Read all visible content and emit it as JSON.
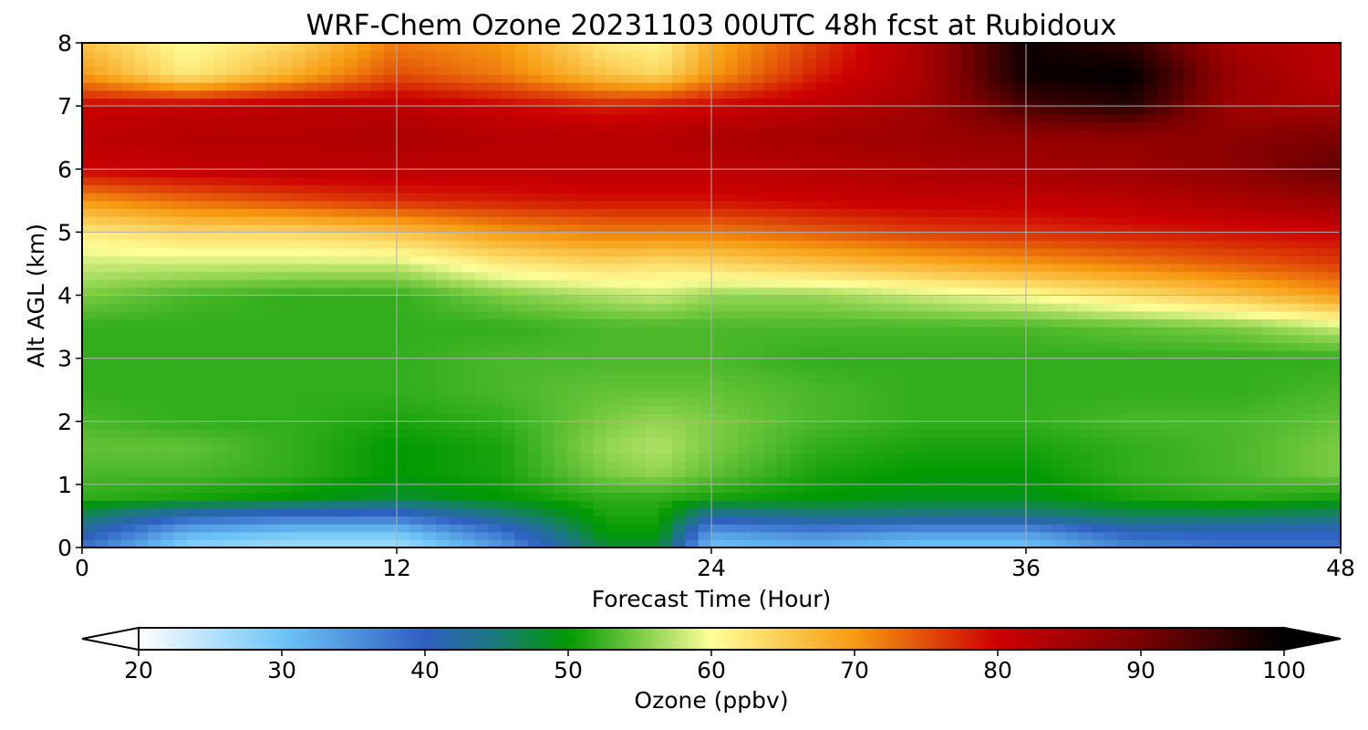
{
  "chart_data": {
    "type": "heatmap",
    "title": "WRF-Chem Ozone  20231103 00UTC 48h fcst at Rubidoux",
    "xlabel": "Forecast Time (Hour)",
    "ylabel": "Alt AGL (km)",
    "xlim": [
      0,
      48
    ],
    "ylim": [
      0,
      8
    ],
    "x_ticks": [
      0,
      12,
      24,
      36,
      48
    ],
    "y_ticks": [
      0,
      1,
      2,
      3,
      4,
      5,
      6,
      7,
      8
    ],
    "grid": true,
    "colorbar": {
      "label": "Ozone  (ppbv)",
      "min": 20,
      "max": 100,
      "ticks": [
        20,
        30,
        40,
        50,
        60,
        70,
        80,
        90,
        100
      ],
      "extend": "both",
      "color_stops": [
        {
          "value": 20,
          "color": "#ffffff"
        },
        {
          "value": 30,
          "color": "#6ec5f8"
        },
        {
          "value": 40,
          "color": "#2e5fc2"
        },
        {
          "value": 45,
          "color": "#1a7a7a"
        },
        {
          "value": 50,
          "color": "#009900"
        },
        {
          "value": 55,
          "color": "#7ccc44"
        },
        {
          "value": 60,
          "color": "#ffff99"
        },
        {
          "value": 70,
          "color": "#f79a10"
        },
        {
          "value": 80,
          "color": "#cc0000"
        },
        {
          "value": 90,
          "color": "#7a0000"
        },
        {
          "value": 100,
          "color": "#000000"
        }
      ]
    },
    "x_hours": [
      0,
      4,
      8,
      12,
      16,
      20,
      22,
      24,
      28,
      32,
      36,
      40,
      44,
      48
    ],
    "z_km": [
      0,
      0.25,
      0.5,
      0.8,
      1.2,
      1.6,
      2,
      2.5,
      3,
      3.5,
      4,
      4.5,
      5,
      5.5,
      6,
      6.5,
      7,
      7.5,
      8
    ],
    "ozone_ppbv": [
      [
        38,
        28,
        26,
        26,
        34,
        48,
        48,
        30,
        32,
        30,
        30,
        36,
        38,
        38
      ],
      [
        42,
        32,
        30,
        30,
        38,
        50,
        50,
        34,
        36,
        34,
        34,
        40,
        40,
        40
      ],
      [
        46,
        40,
        38,
        38,
        44,
        51,
        51,
        42,
        44,
        44,
        44,
        46,
        46,
        45
      ],
      [
        52,
        51,
        50,
        48,
        50,
        52,
        52,
        51,
        50,
        49,
        49,
        51,
        52,
        51
      ],
      [
        53,
        53,
        52,
        50,
        51,
        55,
        56,
        54,
        51,
        50,
        50,
        52,
        53,
        55
      ],
      [
        54,
        54,
        52,
        50,
        51,
        56,
        57,
        55,
        52,
        51,
        51,
        52,
        53,
        55
      ],
      [
        53,
        52,
        52,
        51,
        52,
        55,
        56,
        55,
        53,
        52,
        52,
        53,
        53,
        54
      ],
      [
        52,
        52,
        52,
        52,
        53,
        54,
        54,
        54,
        53,
        52,
        52,
        52,
        52,
        53
      ],
      [
        52,
        52,
        52,
        52,
        53,
        53,
        53,
        53,
        52,
        52,
        52,
        52,
        52,
        52
      ],
      [
        52,
        52,
        52,
        52,
        52,
        53,
        53,
        53,
        53,
        53,
        53,
        54,
        55,
        58
      ],
      [
        55,
        53,
        52,
        52,
        55,
        57,
        58,
        56,
        56,
        58,
        60,
        63,
        66,
        70
      ],
      [
        58,
        58,
        58,
        58,
        62,
        64,
        63,
        64,
        66,
        68,
        70,
        72,
        74,
        76
      ],
      [
        62,
        64,
        64,
        66,
        70,
        72,
        72,
        72,
        74,
        76,
        77,
        78,
        79,
        80
      ],
      [
        70,
        73,
        75,
        77,
        78,
        79,
        79,
        79,
        80,
        81,
        81,
        82,
        84,
        86
      ],
      [
        80,
        81,
        82,
        82,
        82,
        82,
        82,
        82,
        83,
        84,
        85,
        86,
        88,
        92
      ],
      [
        82,
        83,
        83,
        84,
        83,
        83,
        83,
        84,
        85,
        86,
        87,
        87,
        88,
        90
      ],
      [
        80,
        81,
        82,
        82,
        80,
        78,
        79,
        80,
        82,
        85,
        94,
        97,
        85,
        84
      ],
      [
        70,
        62,
        68,
        75,
        72,
        66,
        64,
        70,
        78,
        84,
        99,
        100,
        86,
        82
      ],
      [
        66,
        60,
        64,
        72,
        70,
        62,
        61,
        68,
        76,
        84,
        99,
        96,
        84,
        82
      ]
    ]
  }
}
